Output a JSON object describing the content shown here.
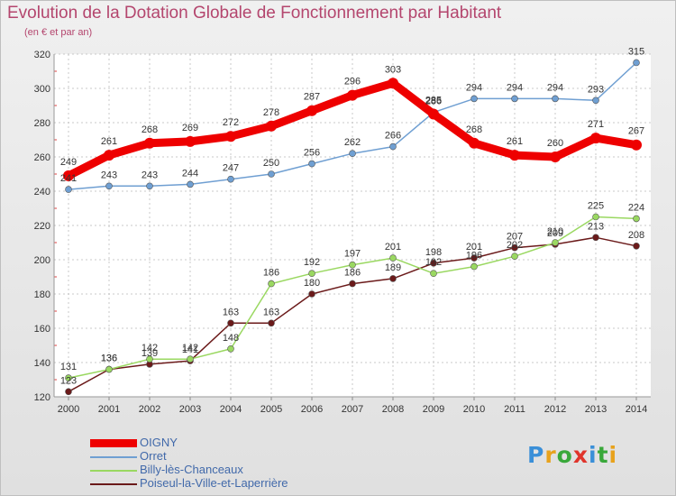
{
  "title": "Evolution de la Dotation Globale de Fonctionnement par Habitant",
  "subtitle": "(en € et par an)",
  "brand": {
    "text": "Proxiti",
    "letter_colors": [
      "#3a8fd8",
      "#e8a21c",
      "#39a83a",
      "#e0342b",
      "#3a8fd8",
      "#39a83a",
      "#e8a21c"
    ]
  },
  "chart_data": {
    "type": "line",
    "title": "Evolution de la Dotation Globale de Fonctionnement par Habitant",
    "subtitle": "(en € et par an)",
    "x": [
      "2000",
      "2001",
      "2002",
      "2003",
      "2004",
      "2005",
      "2006",
      "2007",
      "2008",
      "2009",
      "2010",
      "2011",
      "2012",
      "2013",
      "2014"
    ],
    "ylim": [
      120,
      320
    ],
    "yticks": [
      120,
      140,
      160,
      180,
      200,
      220,
      240,
      260,
      280,
      300,
      320
    ],
    "grid": true,
    "legend": "bottom-left",
    "series": [
      {
        "name": "OIGNY",
        "color": "#ee0000",
        "values": [
          249,
          261,
          268,
          269,
          272,
          278,
          287,
          296,
          303,
          285,
          268,
          261,
          260,
          271,
          267
        ]
      },
      {
        "name": "Orret",
        "color": "#6f9fd2",
        "values": [
          241,
          243,
          243,
          244,
          247,
          250,
          256,
          262,
          266,
          286,
          294,
          294,
          294,
          293,
          315
        ]
      },
      {
        "name": "Billy-lès-Chanceaux",
        "color": "#9ad861",
        "values": [
          131,
          136,
          142,
          142,
          148,
          186,
          192,
          197,
          201,
          192,
          196,
          202,
          210,
          225,
          224
        ]
      },
      {
        "name": "Poiseul-la-Ville-et-Laperrière",
        "color": "#6b1a1a",
        "values": [
          123,
          136,
          139,
          141,
          163,
          163,
          180,
          186,
          189,
          198,
          201,
          207,
          209,
          213,
          208
        ]
      }
    ]
  }
}
